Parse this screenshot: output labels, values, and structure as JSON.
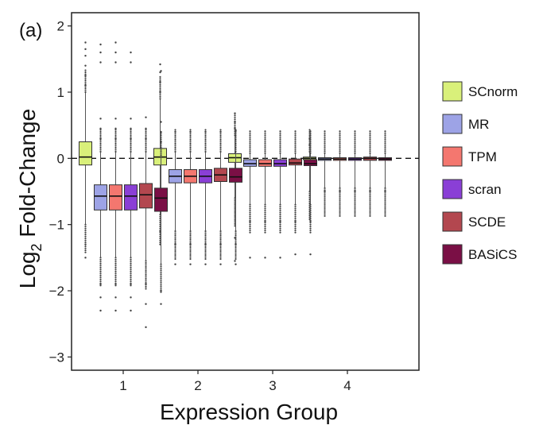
{
  "panel_label": "(a)",
  "chart_data": {
    "type": "box",
    "xlabel": "Expression Group",
    "ylabel_main": "Log",
    "ylabel_sub": "2",
    "ylabel_rest": " Fold-Change",
    "ylim": [
      -3.2,
      2.2
    ],
    "yticks": [
      -3,
      -2,
      -1,
      0,
      1,
      2
    ],
    "yticklabels": [
      "−3",
      "−2",
      "−1",
      "0",
      "1",
      "2"
    ],
    "categories": [
      "1",
      "2",
      "3",
      "4"
    ],
    "reference_line": {
      "y": 0,
      "style": "dashed"
    },
    "grid": false,
    "legend_position": "right",
    "series": [
      {
        "name": "SCnorm",
        "color": "#d9f07a",
        "boxes": [
          {
            "q1": -0.1,
            "median": 0.02,
            "q3": 0.25,
            "whisker_low": -1.0,
            "whisker_high": 1.0,
            "outliers": [
              -1.5,
              -1.3,
              1.1,
              1.25,
              1.4,
              1.55,
              1.65,
              1.75
            ]
          },
          {
            "q1": -0.1,
            "median": 0.02,
            "q3": 0.15,
            "whisker_low": -0.85,
            "whisker_high": 0.9,
            "outliers": [
              -1.1,
              -1.3,
              1.0,
              1.15,
              1.3,
              1.42
            ]
          },
          {
            "q1": -0.06,
            "median": 0.01,
            "q3": 0.07,
            "whisker_low": -0.6,
            "whisker_high": 0.35,
            "outliers": [
              -1.55,
              -1.2,
              0.45,
              0.55,
              0.68
            ]
          },
          {
            "q1": -0.02,
            "median": 0.0,
            "q3": 0.02,
            "whisker_low": -0.5,
            "whisker_high": 0.1,
            "outliers": [
              0.2,
              0.3
            ]
          }
        ]
      },
      {
        "name": "MR",
        "color": "#9da3e6",
        "boxes": [
          {
            "q1": -0.78,
            "median": -0.57,
            "q3": -0.4,
            "whisker_low": -1.5,
            "whisker_high": 0.1,
            "outliers": [
              -2.3,
              -2.1,
              -1.9,
              0.3,
              0.45,
              0.6,
              1.45,
              1.6,
              1.72
            ]
          },
          {
            "q1": -0.37,
            "median": -0.27,
            "q3": -0.17,
            "whisker_low": -1.1,
            "whisker_high": 0.1,
            "outliers": [
              -1.6,
              -1.3,
              0.4
            ]
          },
          {
            "q1": -0.12,
            "median": -0.08,
            "q3": -0.02,
            "whisker_low": -0.7,
            "whisker_high": 0.08,
            "outliers": [
              -1.5,
              -0.95
            ]
          },
          {
            "q1": -0.03,
            "median": -0.01,
            "q3": 0.01,
            "whisker_low": -0.45,
            "whisker_high": 0.08,
            "outliers": [
              -0.5
            ]
          }
        ]
      },
      {
        "name": "TPM",
        "color": "#f4776f",
        "boxes": [
          {
            "q1": -0.78,
            "median": -0.57,
            "q3": -0.4,
            "whisker_low": -1.5,
            "whisker_high": 0.1,
            "outliers": [
              -2.3,
              -2.1,
              -1.9,
              0.3,
              0.45,
              0.6,
              1.45,
              1.6,
              1.75
            ]
          },
          {
            "q1": -0.37,
            "median": -0.27,
            "q3": -0.17,
            "whisker_low": -1.1,
            "whisker_high": 0.1,
            "outliers": [
              -1.6,
              -1.3,
              0.4
            ]
          },
          {
            "q1": -0.12,
            "median": -0.08,
            "q3": -0.02,
            "whisker_low": -0.7,
            "whisker_high": 0.08,
            "outliers": [
              -1.5,
              -0.95
            ]
          },
          {
            "q1": -0.03,
            "median": -0.01,
            "q3": 0.01,
            "whisker_low": -0.45,
            "whisker_high": 0.08,
            "outliers": [
              -0.5
            ]
          }
        ]
      },
      {
        "name": "scran",
        "color": "#8a3fd6",
        "boxes": [
          {
            "q1": -0.78,
            "median": -0.57,
            "q3": -0.4,
            "whisker_low": -1.5,
            "whisker_high": 0.1,
            "outliers": [
              -2.3,
              -2.1,
              -1.9,
              0.3,
              0.45,
              0.6,
              1.45,
              1.6
            ]
          },
          {
            "q1": -0.37,
            "median": -0.27,
            "q3": -0.17,
            "whisker_low": -1.1,
            "whisker_high": 0.1,
            "outliers": [
              -1.6,
              -1.3,
              0.4
            ]
          },
          {
            "q1": -0.12,
            "median": -0.08,
            "q3": -0.02,
            "whisker_low": -0.7,
            "whisker_high": 0.08,
            "outliers": [
              -1.5,
              -0.95
            ]
          },
          {
            "q1": -0.03,
            "median": -0.01,
            "q3": 0.01,
            "whisker_low": -0.45,
            "whisker_high": 0.08,
            "outliers": [
              -0.5
            ]
          }
        ]
      },
      {
        "name": "SCDE",
        "color": "#b3474f",
        "boxes": [
          {
            "q1": -0.75,
            "median": -0.55,
            "q3": -0.38,
            "whisker_low": -1.55,
            "whisker_high": 0.1,
            "outliers": [
              -2.55,
              -2.2,
              -1.9,
              0.3,
              0.45,
              0.62
            ]
          },
          {
            "q1": -0.35,
            "median": -0.25,
            "q3": -0.15,
            "whisker_low": -1.1,
            "whisker_high": 0.1,
            "outliers": [
              -1.6,
              -1.3,
              0.4
            ]
          },
          {
            "q1": -0.1,
            "median": -0.07,
            "q3": -0.01,
            "whisker_low": -0.7,
            "whisker_high": 0.08,
            "outliers": [
              -1.45,
              -0.95
            ]
          },
          {
            "q1": -0.03,
            "median": 0.0,
            "q3": 0.02,
            "whisker_low": -0.45,
            "whisker_high": 0.08,
            "outliers": [
              -0.5
            ]
          }
        ]
      },
      {
        "name": "BASiCS",
        "color": "#7a0f45",
        "boxes": [
          {
            "q1": -0.8,
            "median": -0.6,
            "q3": -0.45,
            "whisker_low": -1.6,
            "whisker_high": 0.05,
            "outliers": [
              -2.2,
              -2.0,
              0.25,
              0.4,
              0.55,
              1.32
            ]
          },
          {
            "q1": -0.36,
            "median": -0.28,
            "q3": -0.15,
            "whisker_low": -1.1,
            "whisker_high": 0.1,
            "outliers": [
              -1.6,
              -1.3,
              0.42
            ]
          },
          {
            "q1": -0.11,
            "median": -0.08,
            "q3": -0.02,
            "whisker_low": -0.7,
            "whisker_high": 0.08,
            "outliers": [
              -1.45,
              -0.95
            ]
          },
          {
            "q1": -0.03,
            "median": -0.01,
            "q3": 0.01,
            "whisker_low": -0.45,
            "whisker_high": 0.08,
            "outliers": [
              -0.5
            ]
          }
        ]
      }
    ]
  }
}
